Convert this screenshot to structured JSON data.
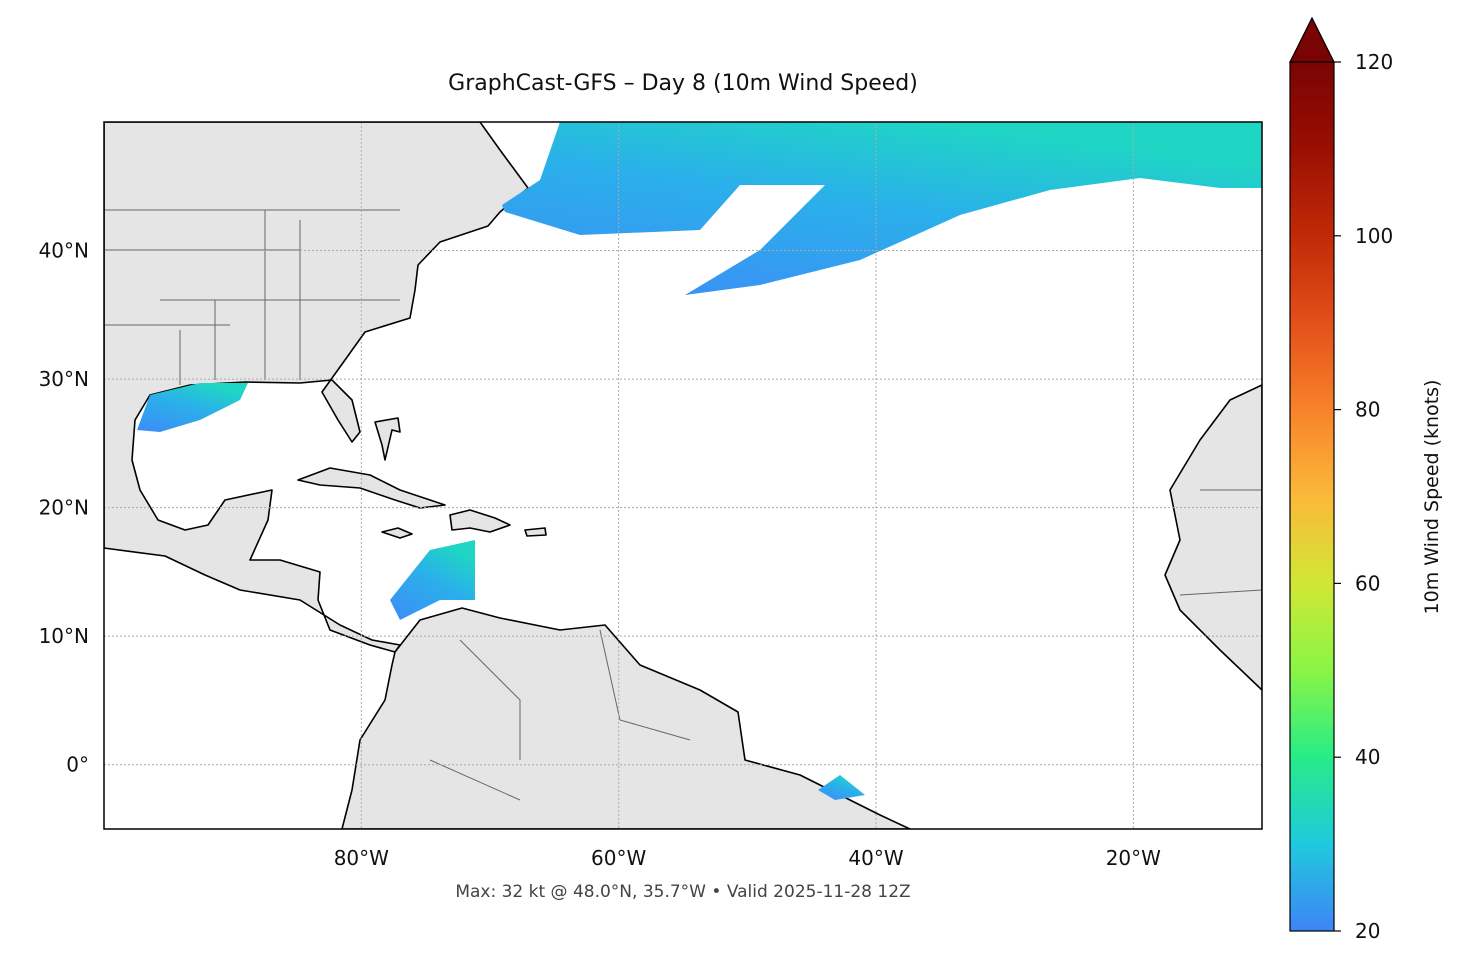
{
  "chart_data": {
    "type": "map",
    "title": "GraphCast-GFS – Day 8 (10m Wind Speed)",
    "note": "Max: 32 kt @ 48.0°N, 35.7°W • Valid 2025-11-28 12Z",
    "xlim": [
      -100,
      -10
    ],
    "ylim": [
      -5,
      50
    ],
    "xticks": [
      {
        "value": -80,
        "label": "80°W"
      },
      {
        "value": -60,
        "label": "60°W"
      },
      {
        "value": -40,
        "label": "40°W"
      },
      {
        "value": -20,
        "label": "20°W"
      }
    ],
    "yticks": [
      {
        "value": 0,
        "label": "0°"
      },
      {
        "value": 10,
        "label": "10°N"
      },
      {
        "value": 20,
        "label": "20°N"
      },
      {
        "value": 30,
        "label": "30°N"
      },
      {
        "value": 40,
        "label": "40°N"
      }
    ],
    "grid": true,
    "colorbar": {
      "label": "10m Wind Speed (knots)",
      "lim": [
        20,
        120
      ],
      "ticks": [
        20,
        40,
        60,
        80,
        100,
        120
      ],
      "colors": [
        "#3f84f6",
        "#1fc9dd",
        "#27ec88",
        "#8af545",
        "#d1e735",
        "#fbb939",
        "#f8822a",
        "#e3501a",
        "#c12a07",
        "#9a0f03",
        "#7a0403"
      ]
    }
  }
}
